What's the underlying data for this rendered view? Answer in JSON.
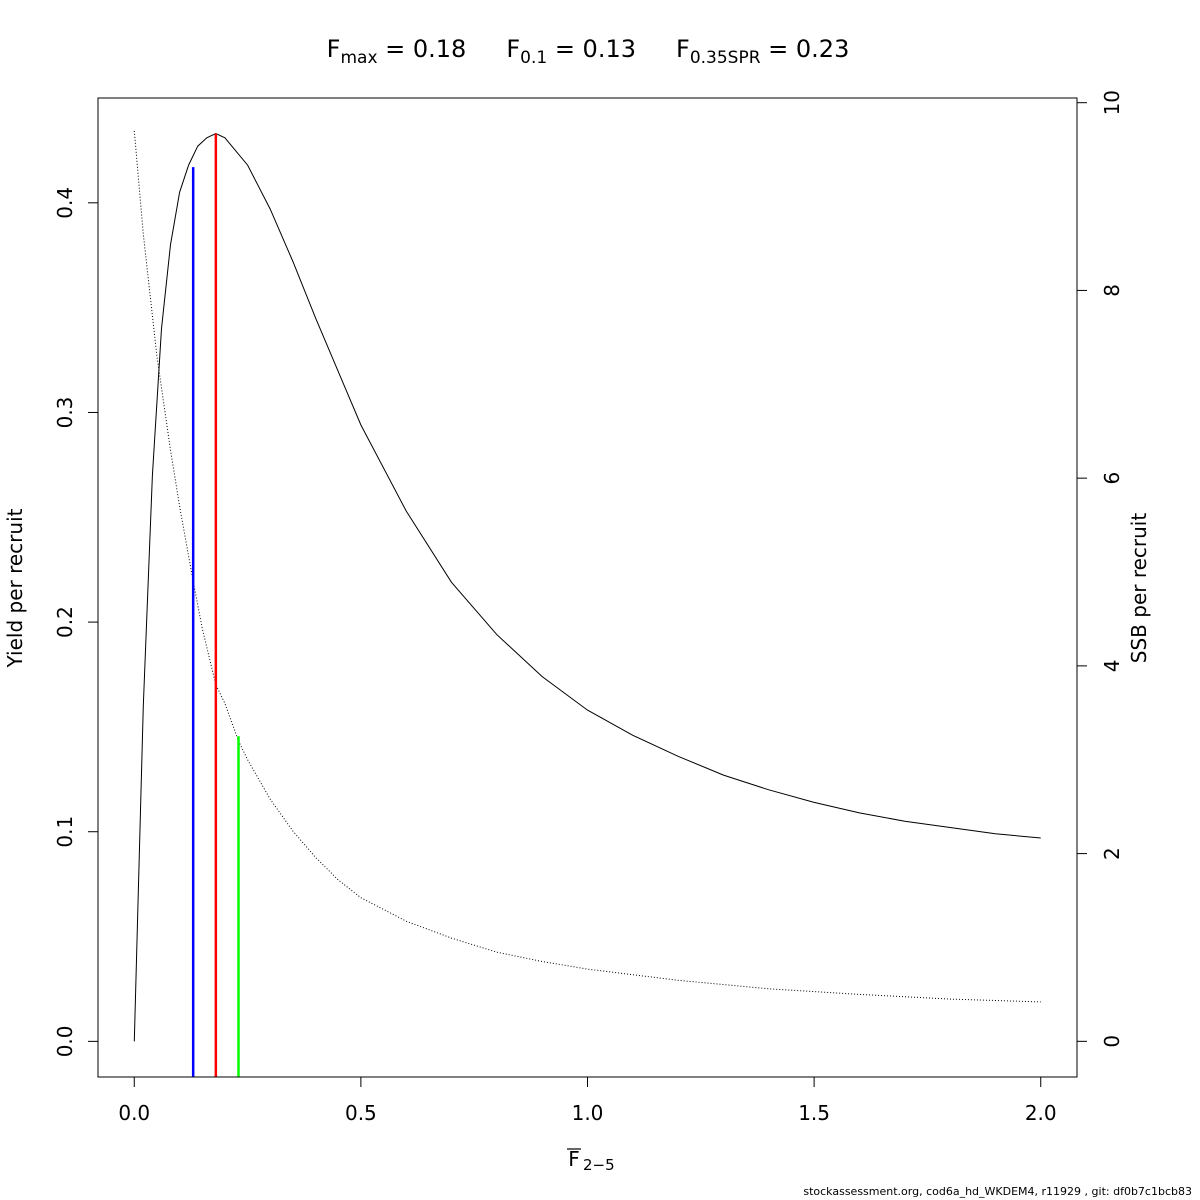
{
  "chart_data": {
    "type": "line",
    "title_parts": [
      {
        "base": "F",
        "sub": "max",
        "rest": " = 0.18"
      },
      {
        "base": "F",
        "sub": "0.1",
        "rest": " = 0.13"
      },
      {
        "base": "F",
        "sub": "0.35SPR",
        "rest": " = 0.23"
      }
    ],
    "xlabel_base": "F",
    "xlabel_sub": "2−5",
    "ylabel": "Yield per recruit",
    "y2label": "SSB per recruit",
    "xlim": [
      -0.08,
      2.08
    ],
    "ylim": [
      -0.017,
      0.45
    ],
    "y2lim": [
      -0.38,
      10.05
    ],
    "xticks": [
      0.0,
      0.5,
      1.0,
      1.5,
      2.0
    ],
    "xtick_labels": [
      "0.0",
      "0.5",
      "1.0",
      "1.5",
      "2.0"
    ],
    "yticks": [
      0.0,
      0.1,
      0.2,
      0.3,
      0.4
    ],
    "ytick_labels": [
      "0.0",
      "0.1",
      "0.2",
      "0.3",
      "0.4"
    ],
    "y2ticks": [
      0,
      2,
      4,
      6,
      8,
      10
    ],
    "y2tick_labels": [
      "0",
      "2",
      "4",
      "6",
      "8",
      "10"
    ],
    "series": [
      {
        "axis": "left",
        "style": "solid",
        "color": "#000000",
        "x": [
          0,
          0.02,
          0.04,
          0.06,
          0.08,
          0.1,
          0.12,
          0.14,
          0.16,
          0.18,
          0.2,
          0.25,
          0.3,
          0.35,
          0.4,
          0.5,
          0.6,
          0.7,
          0.8,
          0.9,
          1.0,
          1.1,
          1.2,
          1.3,
          1.4,
          1.5,
          1.6,
          1.7,
          1.8,
          1.9,
          2.0
        ],
        "y": [
          0.0,
          0.16,
          0.27,
          0.34,
          0.38,
          0.405,
          0.418,
          0.427,
          0.431,
          0.433,
          0.431,
          0.418,
          0.397,
          0.372,
          0.345,
          0.294,
          0.253,
          0.219,
          0.194,
          0.174,
          0.158,
          0.146,
          0.136,
          0.127,
          0.12,
          0.114,
          0.109,
          0.105,
          0.102,
          0.099,
          0.097
        ]
      },
      {
        "axis": "right",
        "style": "dotted",
        "color": "#000000",
        "x": [
          0,
          0.02,
          0.05,
          0.08,
          0.1,
          0.13,
          0.15,
          0.18,
          0.2,
          0.23,
          0.25,
          0.3,
          0.35,
          0.4,
          0.45,
          0.5,
          0.6,
          0.7,
          0.8,
          0.9,
          1.0,
          1.2,
          1.4,
          1.6,
          1.8,
          2.0
        ],
        "y": [
          9.7,
          8.6,
          7.3,
          6.3,
          5.7,
          4.9,
          4.4,
          3.8,
          3.6,
          3.2,
          3.0,
          2.58,
          2.24,
          1.96,
          1.72,
          1.53,
          1.28,
          1.1,
          0.95,
          0.85,
          0.77,
          0.65,
          0.56,
          0.5,
          0.45,
          0.42
        ]
      }
    ],
    "reference_lines": [
      {
        "x": 0.13,
        "axis": "left",
        "top": 0.417,
        "color": "#0000ff"
      },
      {
        "x": 0.18,
        "axis": "left",
        "top": 0.433,
        "color": "#ff0000"
      },
      {
        "x": 0.23,
        "axis": "right",
        "top": 3.25,
        "color": "#00ff00"
      }
    ]
  },
  "footer": "stockassessment.org, cod6a_hd_WKDEM4, r11929 , git: df0b7c1bcb83"
}
